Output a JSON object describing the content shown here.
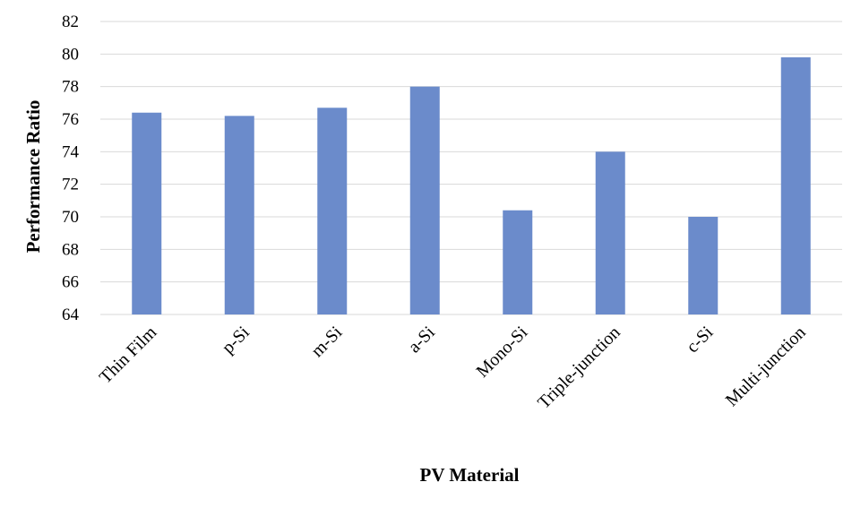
{
  "chart_data": {
    "type": "bar",
    "title": "",
    "xlabel": "PV Material",
    "ylabel": "Performance Ratio",
    "categories": [
      "Thin Film",
      "p-Si",
      "m-Si",
      "a-Si",
      "Mono-Si",
      "Triple-junction",
      "c-Si",
      "Multi-junction"
    ],
    "values": [
      76.4,
      76.2,
      76.7,
      78.0,
      70.4,
      74.0,
      70.0,
      79.8
    ],
    "ylim": [
      64,
      82
    ],
    "yticks": [
      64,
      66,
      68,
      70,
      72,
      74,
      76,
      78,
      80,
      82
    ],
    "grid": true,
    "bar_color": "#6b8bcb",
    "grid_color": "#d9d9d9"
  }
}
